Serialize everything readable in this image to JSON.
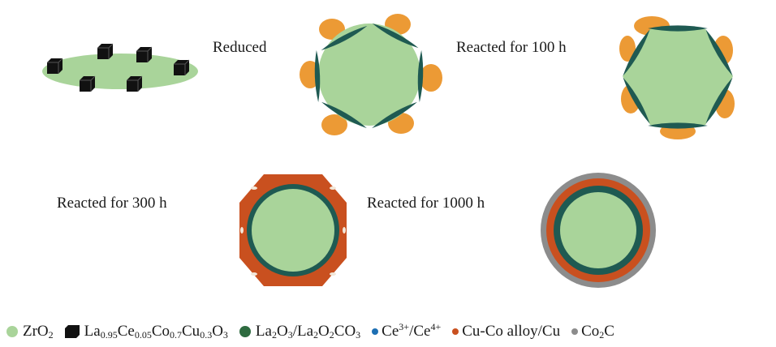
{
  "labels": {
    "reduced": "Reduced",
    "reacted_100": "Reacted for 100 h",
    "reacted_300": "Reacted for 300 h",
    "reacted_1000": "Reacted for 1000 h"
  },
  "legend": [
    {
      "key": "zro2",
      "color": "#a9d49a",
      "text": "ZrO2"
    },
    {
      "key": "perovskite",
      "color": "#111111",
      "text": "La0.95Ce0.05Co0.7Cu0.3O3"
    },
    {
      "key": "la2o3",
      "color": "#2e6b40",
      "text": "La2O3/La2O2CO3"
    },
    {
      "key": "ce",
      "color": "#1d6fb3",
      "text": "Ce3+/Ce4+"
    },
    {
      "key": "cuco",
      "color": "#c9501f",
      "text": "Cu-Co alloy/Cu"
    },
    {
      "key": "co2c",
      "color": "#8c8c8c",
      "text": "Co2C"
    }
  ],
  "colors": {
    "zro2": "#a9d49a",
    "cube": "#111111",
    "la2o3": "#2e6b40",
    "la2o3_dark": "#1f4f4a",
    "orange": "#ec9a35",
    "cuco": "#c9501f",
    "gray": "#8c8c8c",
    "ce": "#1d6fb3"
  }
}
